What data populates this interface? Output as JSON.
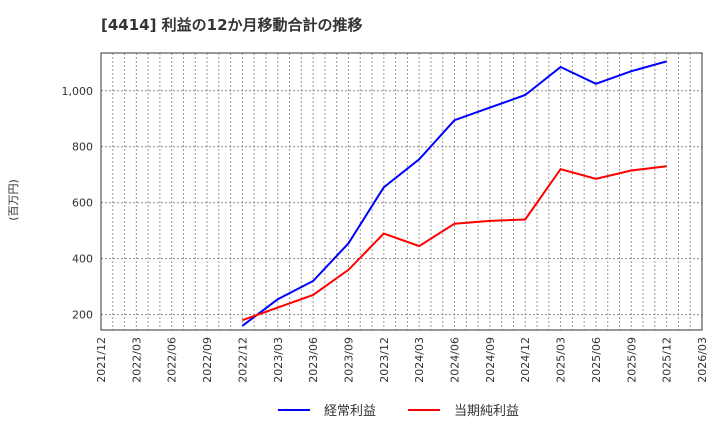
{
  "title": "[4414]  利益の12か月移動合計の推移",
  "chart_data": {
    "type": "line",
    "title": "[4414]  利益の12か月移動合計の推移",
    "xlabel": "",
    "ylabel": "(百万円)",
    "x_ticks": [
      "2021/12",
      "2022/03",
      "2022/06",
      "2022/09",
      "2022/12",
      "2023/03",
      "2023/06",
      "2023/09",
      "2023/12",
      "2024/03",
      "2024/06",
      "2024/09",
      "2024/12",
      "2025/03",
      "2025/06",
      "2025/09",
      "2025/12",
      "2026/03"
    ],
    "y_ticks": [
      200,
      400,
      600,
      800,
      1000
    ],
    "y_tick_labels": [
      "200",
      "400",
      "600",
      "800",
      "1,000"
    ],
    "ylim": [
      145,
      1135
    ],
    "grid": true,
    "legend_position": "bottom",
    "x": [
      "2022/12",
      "2023/03",
      "2023/06",
      "2023/09",
      "2023/12",
      "2024/03",
      "2024/06",
      "2024/09",
      "2024/12",
      "2025/03",
      "2025/06",
      "2025/09",
      "2025/12"
    ],
    "series": [
      {
        "name": "経常利益",
        "color": "#0000ff",
        "values": [
          160,
          255,
          320,
          455,
          655,
          755,
          895,
          940,
          985,
          1085,
          1025,
          1070,
          1105
        ]
      },
      {
        "name": "当期純利益",
        "color": "#ff0000",
        "values": [
          180,
          225,
          270,
          360,
          490,
          445,
          525,
          535,
          540,
          720,
          685,
          715,
          730
        ]
      }
    ]
  }
}
